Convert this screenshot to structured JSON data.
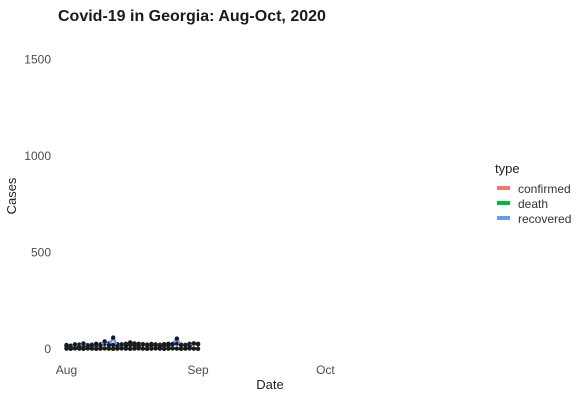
{
  "chart_data": {
    "type": "line",
    "title": "Covid-19 in Georgia: Aug-Oct, 2020",
    "xlabel": "Date",
    "ylabel": "Cases",
    "x_type": "date",
    "x_ticks": [
      "Aug",
      "Sep",
      "Oct"
    ],
    "x_tick_dates": [
      "2020-08-01",
      "2020-09-01",
      "2020-10-01"
    ],
    "xlim": [
      "2020-07-30",
      "2020-10-28"
    ],
    "y_ticks": [
      0,
      500,
      1000,
      1500
    ],
    "ylim": [
      -30,
      1600
    ],
    "grid": false,
    "legend": {
      "title": "type",
      "placement": "right"
    },
    "series": [
      {
        "name": "confirmed",
        "color": "#F8766D",
        "x": [
          "2020-08-01",
          "2020-08-02",
          "2020-08-03",
          "2020-08-04",
          "2020-08-05",
          "2020-08-06",
          "2020-08-07",
          "2020-08-08",
          "2020-08-09",
          "2020-08-10",
          "2020-08-11",
          "2020-08-12",
          "2020-08-13",
          "2020-08-14",
          "2020-08-15",
          "2020-08-16",
          "2020-08-17",
          "2020-08-18",
          "2020-08-19",
          "2020-08-20",
          "2020-08-21",
          "2020-08-22",
          "2020-08-23",
          "2020-08-24",
          "2020-08-25",
          "2020-08-26",
          "2020-08-27",
          "2020-08-28",
          "2020-08-29",
          "2020-08-30",
          "2020-08-31",
          "2020-09-01"
        ],
        "values": [
          22,
          18,
          20,
          24,
          19,
          21,
          23,
          20,
          25,
          28,
          30,
          22,
          26,
          24,
          28,
          35,
          30,
          28,
          26,
          24,
          27,
          25,
          23,
          26,
          28,
          27,
          29,
          24,
          22,
          28,
          30,
          25
        ]
      },
      {
        "name": "death",
        "color": "#00BA38",
        "x": [
          "2020-08-01",
          "2020-08-02",
          "2020-08-03",
          "2020-08-04",
          "2020-08-05",
          "2020-08-06",
          "2020-08-07",
          "2020-08-08",
          "2020-08-09",
          "2020-08-10",
          "2020-08-11",
          "2020-08-12",
          "2020-08-13",
          "2020-08-14",
          "2020-08-15",
          "2020-08-16",
          "2020-08-17",
          "2020-08-18",
          "2020-08-19",
          "2020-08-20",
          "2020-08-21",
          "2020-08-22",
          "2020-08-23",
          "2020-08-24",
          "2020-08-25",
          "2020-08-26",
          "2020-08-27",
          "2020-08-28",
          "2020-08-29",
          "2020-08-30",
          "2020-08-31",
          "2020-09-01"
        ],
        "values": [
          3,
          2,
          4,
          3,
          2,
          4,
          3,
          2,
          3,
          4,
          3,
          2,
          3,
          4,
          3,
          2,
          3,
          4,
          3,
          2,
          3,
          4,
          3,
          2,
          3,
          4,
          3,
          2,
          3,
          4,
          3,
          2
        ]
      },
      {
        "name": "recovered",
        "color": "#619CFF",
        "x": [
          "2020-08-01",
          "2020-08-02",
          "2020-08-03",
          "2020-08-04",
          "2020-08-05",
          "2020-08-06",
          "2020-08-07",
          "2020-08-08",
          "2020-08-09",
          "2020-08-10",
          "2020-08-11",
          "2020-08-12",
          "2020-08-13",
          "2020-08-14",
          "2020-08-15",
          "2020-08-16",
          "2020-08-17",
          "2020-08-18",
          "2020-08-19",
          "2020-08-20",
          "2020-08-21",
          "2020-08-22",
          "2020-08-23",
          "2020-08-24",
          "2020-08-25",
          "2020-08-26",
          "2020-08-27",
          "2020-08-28",
          "2020-08-29",
          "2020-08-30",
          "2020-08-31",
          "2020-09-01"
        ],
        "values": [
          15,
          10,
          25,
          12,
          30,
          15,
          20,
          28,
          18,
          40,
          20,
          60,
          15,
          25,
          18,
          22,
          20,
          15,
          25,
          18,
          20,
          22,
          15,
          20,
          18,
          25,
          55,
          20,
          22,
          15,
          30,
          28
        ]
      }
    ]
  }
}
